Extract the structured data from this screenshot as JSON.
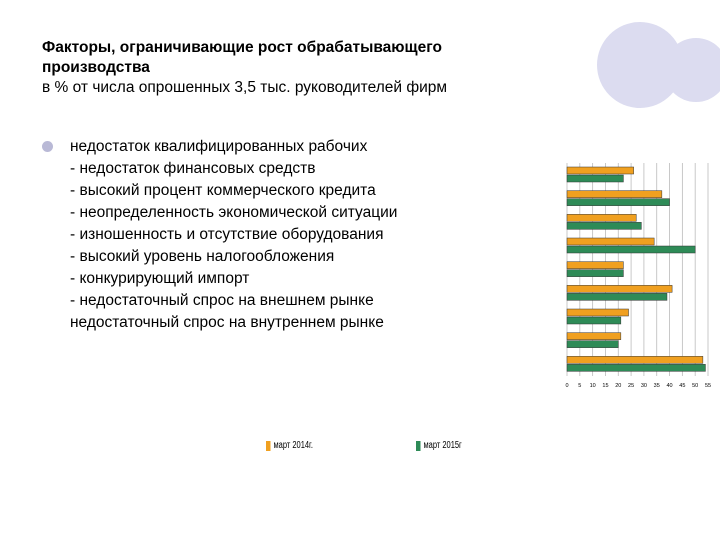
{
  "title": {
    "line1": "Факторы, ограничивающие рост обрабатывающего",
    "line2": "производства",
    "line3": "в % от числа опрошенных 3,5 тыс. руководителей фирм"
  },
  "factors": [
    "недостаток квалифицированных рабочих",
    "- недостаток финансовых средств",
    "- высокий процент коммерческого кредита",
    "- неопределенность экономической ситуации",
    "- изношенность и отсутствие оборудования",
    "- высокий уровень налогообложения",
    "- конкурирующий импорт",
    "- недостаточный спрос на внешнем рынке",
    "недостаточный спрос на внутреннем рынке"
  ],
  "colors": {
    "series1": "#f0a020",
    "series2": "#2e8b57",
    "grid": "#bbbbbb",
    "decor": "#dcdcf0"
  },
  "chart_data": {
    "type": "bar",
    "orientation": "horizontal",
    "categories": [
      "недостаток квалифицированных рабочих",
      "- недостаток финансовых средств",
      "- высокий процент коммерческого кредита",
      "- неопределенность экономической ситуации",
      "- изношенность и отсутствие оборудования",
      "- высокий уровень налогообложения",
      "- конкурирующий импорт",
      "- недостаточный спрос на внешнем рынке",
      "недостаточный спрос на внутреннем рынке"
    ],
    "series": [
      {
        "name": "март 2014г.",
        "values": [
          26,
          37,
          27,
          34,
          22,
          41,
          24,
          21,
          53
        ]
      },
      {
        "name": "март 2015г",
        "values": [
          22,
          40,
          29,
          50,
          22,
          39,
          21,
          20,
          54
        ]
      }
    ],
    "xticks": [
      "0",
      "5",
      "10",
      "15",
      "20",
      "25",
      "30",
      "35",
      "40",
      "45",
      "50",
      "55"
    ],
    "xlim": [
      0,
      55
    ],
    "grid": true,
    "legend_position": "bottom"
  }
}
